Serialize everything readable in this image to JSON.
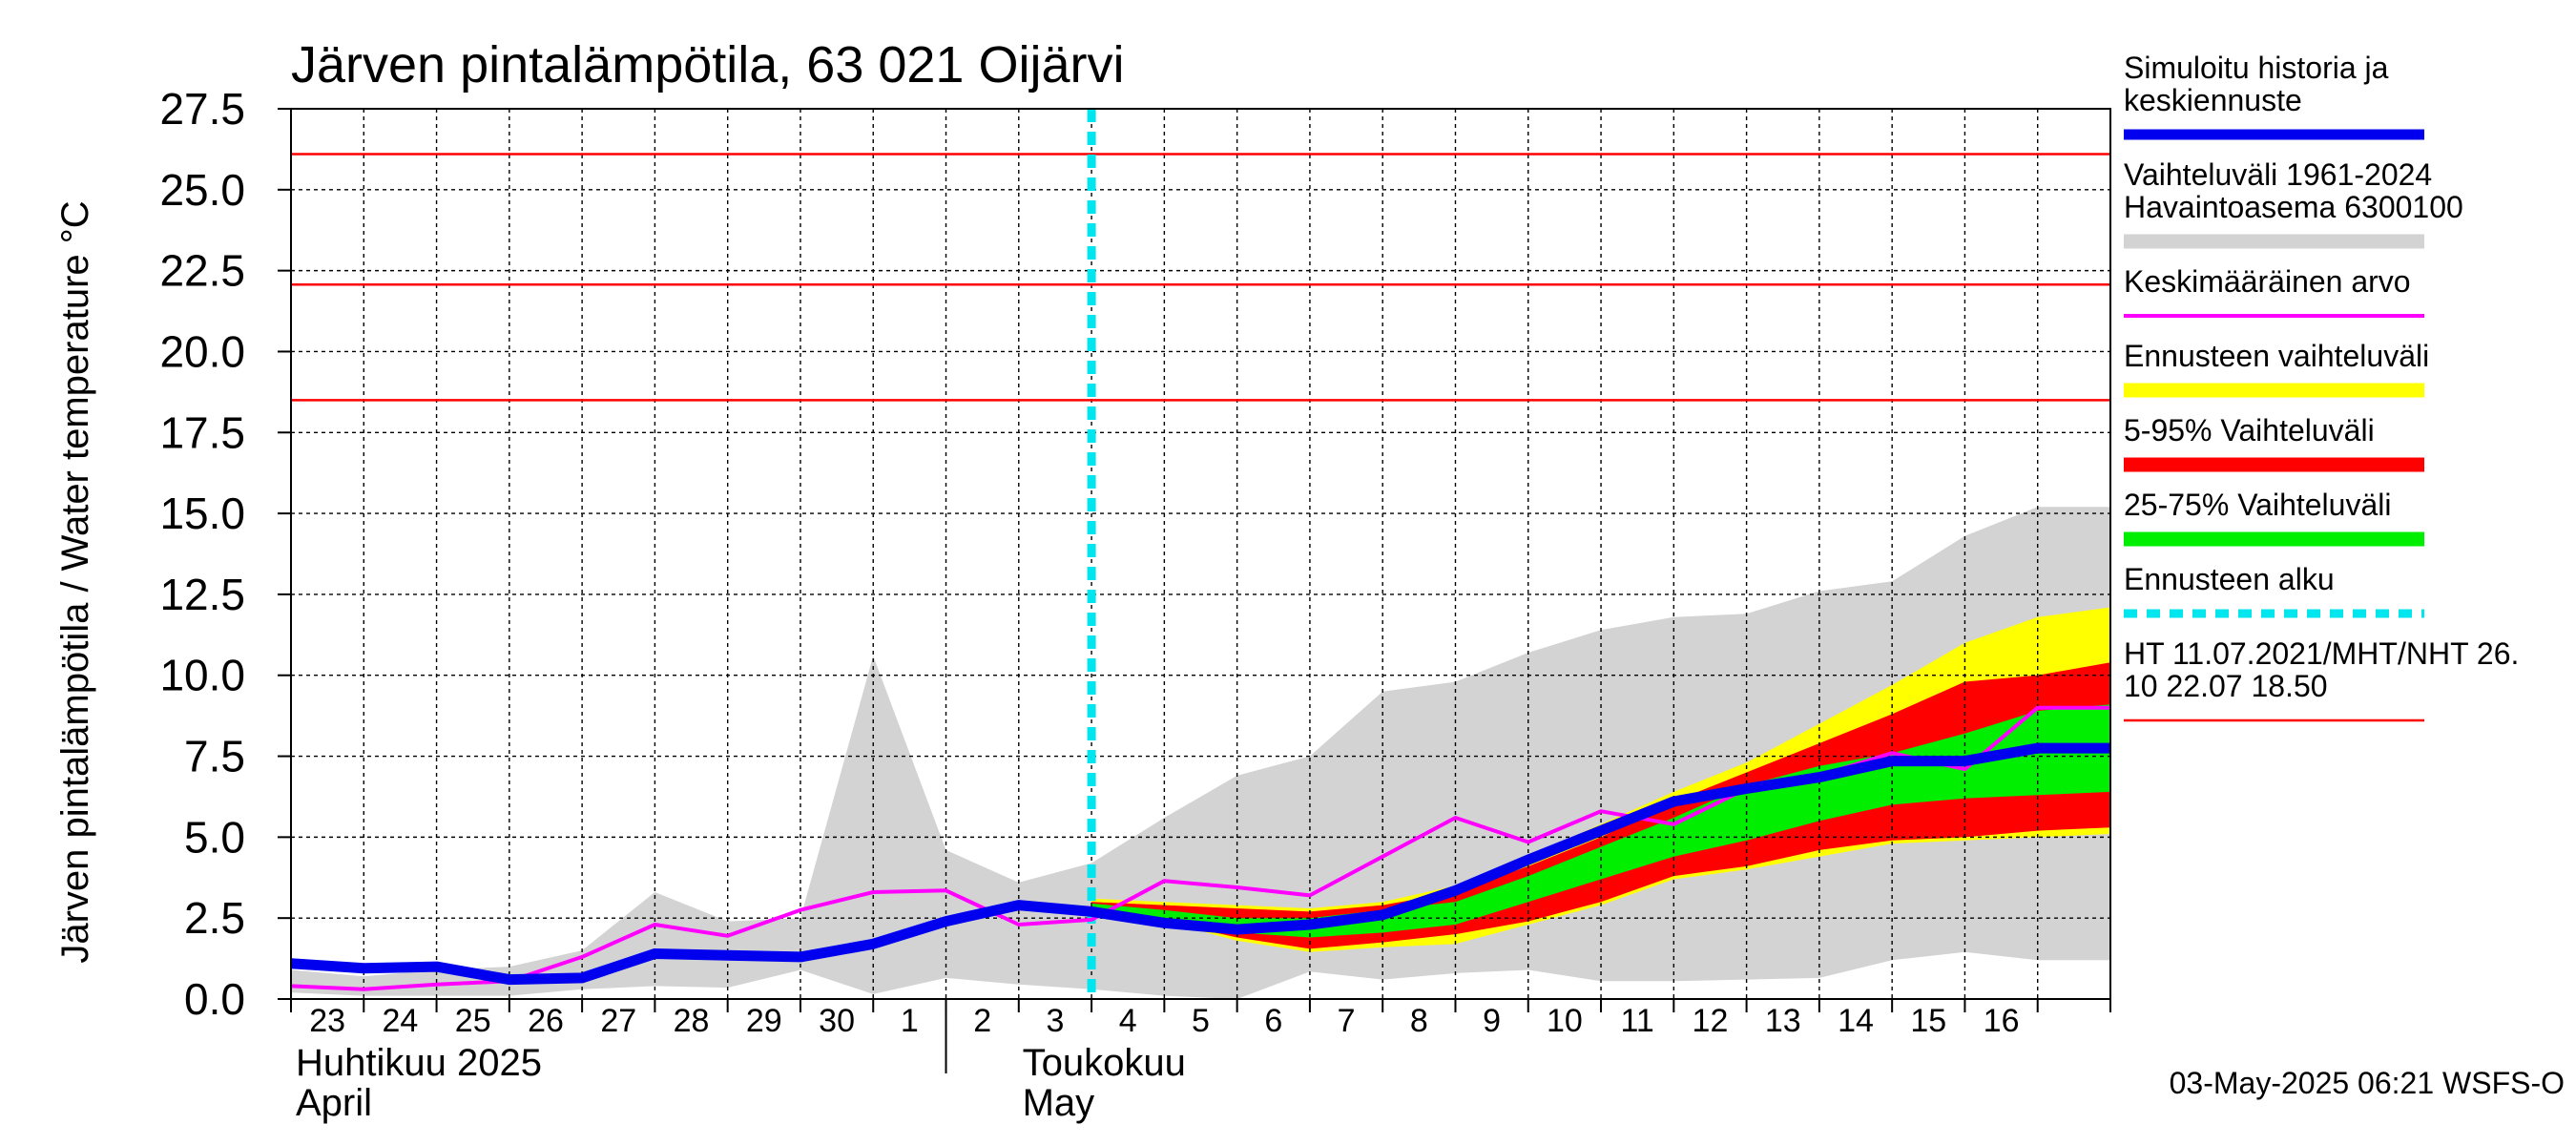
{
  "chart_data": {
    "type": "line",
    "title": "Järven pintalämpötila, 63 021 Oijärvi",
    "ylabel": "Järven pintalämpötila / Water temperature °C",
    "ylim": [
      0,
      27.5
    ],
    "yticks": [
      "0.0",
      "2.5",
      "5.0",
      "7.5",
      "10.0",
      "12.5",
      "15.0",
      "17.5",
      "20.0",
      "22.5",
      "25.0",
      "27.5"
    ],
    "x_start": "2025-04-22",
    "x_end": "2025-05-17",
    "xtick_labels": [
      "23",
      "24",
      "25",
      "26",
      "27",
      "28",
      "29",
      "30",
      "1",
      "2",
      "3",
      "4",
      "5",
      "6",
      "7",
      "8",
      "9",
      "10",
      "11",
      "12",
      "13",
      "14",
      "15",
      "16"
    ],
    "month_labels": [
      {
        "fi": "Huhtikuu  2025",
        "en": "April"
      },
      {
        "fi": "Toukokuu",
        "en": "May"
      }
    ],
    "forecast_start": "2025-05-03",
    "grid": true,
    "legend_position": "right",
    "legend": [
      {
        "label": "Simuloitu historia ja\nkeskiennuste",
        "color": "#0000ee",
        "style": "thick-line"
      },
      {
        "label": "Vaihteluväli 1961-2024\n Havaintoasema 6300100",
        "color": "#d3d3d3",
        "style": "band"
      },
      {
        "label": "Keskimääräinen arvo",
        "color": "#ff00ff",
        "style": "line"
      },
      {
        "label": "Ennusteen vaihteluväli",
        "color": "#ffff00",
        "style": "band"
      },
      {
        "label": "5-95% Vaihteluväli",
        "color": "#ff0000",
        "style": "band"
      },
      {
        "label": "25-75% Vaihteluväli",
        "color": "#00ee00",
        "style": "band"
      },
      {
        "label": "Ennusteen alku",
        "color": "#00e5ee",
        "style": "dashed"
      },
      {
        "label": "HT 11.07.2021/MHT/NHT 26.\n10 22.07 18.50",
        "color": "#ff0000",
        "style": "thin-line"
      }
    ],
    "reference_lines": [
      26.1,
      22.07,
      18.5
    ],
    "series": [
      {
        "name": "Simuloitu historia ja keskiennuste",
        "x": [
          "2025-04-22",
          "2025-04-23",
          "2025-04-24",
          "2025-04-25",
          "2025-04-26",
          "2025-04-27",
          "2025-04-28",
          "2025-04-29",
          "2025-04-30",
          "2025-05-01",
          "2025-05-02",
          "2025-05-03",
          "2025-05-04",
          "2025-05-05",
          "2025-05-06",
          "2025-05-07",
          "2025-05-08",
          "2025-05-09",
          "2025-05-10",
          "2025-05-11",
          "2025-05-12",
          "2025-05-13",
          "2025-05-14",
          "2025-05-15",
          "2025-05-16",
          "2025-05-17"
        ],
        "y": [
          1.1,
          0.95,
          1.0,
          0.6,
          0.65,
          1.4,
          1.35,
          1.3,
          1.7,
          2.4,
          2.9,
          2.7,
          2.35,
          2.15,
          2.3,
          2.6,
          3.35,
          4.3,
          5.2,
          6.1,
          6.5,
          6.85,
          7.35,
          7.35,
          7.75,
          7.75
        ]
      },
      {
        "name": "Keskimääräinen arvo",
        "x": [
          "2025-04-22",
          "2025-04-23",
          "2025-04-24",
          "2025-04-25",
          "2025-04-26",
          "2025-04-27",
          "2025-04-28",
          "2025-04-29",
          "2025-04-30",
          "2025-05-01",
          "2025-05-02",
          "2025-05-03",
          "2025-05-04",
          "2025-05-05",
          "2025-05-06",
          "2025-05-07",
          "2025-05-08",
          "2025-05-09",
          "2025-05-10",
          "2025-05-11",
          "2025-05-12",
          "2025-05-13",
          "2025-05-14",
          "2025-05-15",
          "2025-05-16",
          "2025-05-17"
        ],
        "y": [
          0.4,
          0.3,
          0.45,
          0.55,
          1.3,
          2.3,
          1.95,
          2.75,
          3.3,
          3.35,
          2.3,
          2.45,
          3.65,
          3.45,
          3.2,
          4.4,
          5.6,
          4.85,
          5.8,
          5.4,
          6.5,
          6.9,
          7.6,
          7.1,
          9.0,
          9.0
        ]
      }
    ],
    "bands": [
      {
        "name": "Vaihteluväli 1961-2024",
        "x": [
          "2025-04-22",
          "2025-04-23",
          "2025-04-24",
          "2025-04-25",
          "2025-04-26",
          "2025-04-27",
          "2025-04-28",
          "2025-04-29",
          "2025-04-30",
          "2025-05-01",
          "2025-05-02",
          "2025-05-03",
          "2025-05-04",
          "2025-05-05",
          "2025-05-06",
          "2025-05-07",
          "2025-05-08",
          "2025-05-09",
          "2025-05-10",
          "2025-05-11",
          "2025-05-12",
          "2025-05-13",
          "2025-05-14",
          "2025-05-15",
          "2025-05-16",
          "2025-05-17"
        ],
        "low": [
          0.2,
          0.1,
          0.1,
          0.1,
          0.3,
          0.4,
          0.35,
          0.9,
          0.15,
          0.65,
          0.45,
          0.3,
          0.1,
          0.0,
          0.85,
          0.6,
          0.8,
          0.9,
          0.55,
          0.55,
          0.6,
          0.65,
          1.2,
          1.45,
          1.2,
          1.2
        ],
        "high": [
          0.9,
          0.7,
          0.9,
          1.0,
          1.5,
          3.3,
          2.4,
          2.5,
          10.6,
          4.6,
          3.6,
          4.2,
          5.6,
          6.9,
          7.5,
          9.5,
          9.8,
          10.7,
          11.4,
          11.8,
          11.9,
          12.6,
          12.9,
          14.3,
          15.2,
          15.2
        ]
      },
      {
        "name": "Ennusteen vaihteluväli",
        "x": [
          "2025-05-03",
          "2025-05-04",
          "2025-05-05",
          "2025-05-06",
          "2025-05-07",
          "2025-05-08",
          "2025-05-09",
          "2025-05-10",
          "2025-05-11",
          "2025-05-12",
          "2025-05-13",
          "2025-05-14",
          "2025-05-15",
          "2025-05-16",
          "2025-05-17"
        ],
        "low": [
          2.9,
          2.4,
          1.8,
          1.45,
          1.6,
          1.7,
          2.3,
          2.9,
          3.7,
          4.0,
          4.4,
          4.8,
          4.9,
          5.0,
          5.1
        ],
        "high": [
          3.1,
          3.0,
          2.9,
          2.8,
          3.0,
          3.5,
          4.4,
          5.4,
          6.4,
          7.3,
          8.5,
          9.7,
          11.0,
          11.8,
          12.1
        ]
      },
      {
        "name": "5-95% Vaihteluväli",
        "x": [
          "2025-05-03",
          "2025-05-04",
          "2025-05-05",
          "2025-05-06",
          "2025-05-07",
          "2025-05-08",
          "2025-05-09",
          "2025-05-10",
          "2025-05-11",
          "2025-05-12",
          "2025-05-13",
          "2025-05-14",
          "2025-05-15",
          "2025-05-16",
          "2025-05-17"
        ],
        "low": [
          2.9,
          2.4,
          1.9,
          1.55,
          1.75,
          2.0,
          2.4,
          3.0,
          3.8,
          4.1,
          4.6,
          4.9,
          5.0,
          5.2,
          5.3
        ],
        "high": [
          3.0,
          2.9,
          2.8,
          2.7,
          2.9,
          3.3,
          4.1,
          5.0,
          6.1,
          7.0,
          7.9,
          8.8,
          9.8,
          10.0,
          10.4
        ]
      },
      {
        "name": "25-75% Vaihteluväli",
        "x": [
          "2025-05-03",
          "2025-05-04",
          "2025-05-05",
          "2025-05-06",
          "2025-05-07",
          "2025-05-08",
          "2025-05-09",
          "2025-05-10",
          "2025-05-11",
          "2025-05-12",
          "2025-05-13",
          "2025-05-14",
          "2025-05-15",
          "2025-05-16",
          "2025-05-17"
        ],
        "low": [
          2.85,
          2.5,
          2.05,
          1.9,
          2.05,
          2.3,
          3.0,
          3.7,
          4.4,
          4.9,
          5.5,
          6.0,
          6.2,
          6.3,
          6.4
        ],
        "high": [
          2.95,
          2.75,
          2.5,
          2.5,
          2.75,
          3.0,
          3.8,
          4.7,
          5.6,
          6.6,
          7.2,
          7.6,
          8.2,
          8.9,
          9.1
        ]
      }
    ]
  },
  "footer": "03-May-2025 06:21 WSFS-O"
}
